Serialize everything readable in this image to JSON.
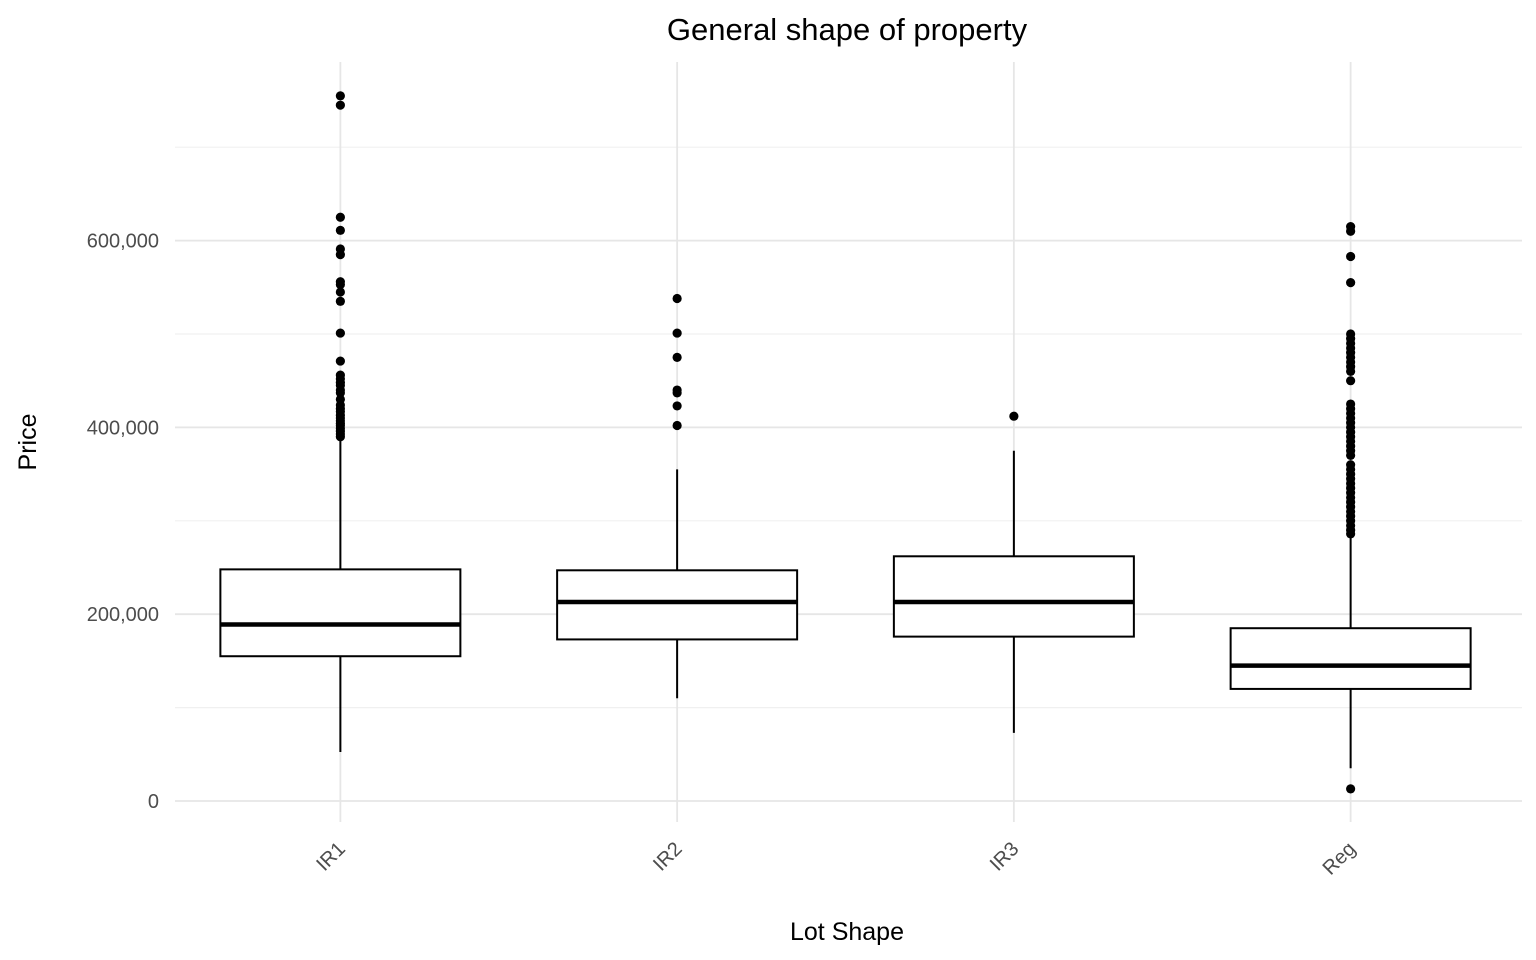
{
  "chart_data": {
    "type": "boxplot",
    "title": "General shape of property",
    "xlabel": "Lot Shape",
    "ylabel": "Price",
    "ylim": [
      -45000,
      790000
    ],
    "y_major_ticks": [
      0,
      200000,
      400000,
      600000
    ],
    "y_tick_labels": [
      "0",
      "200,000",
      "400,000",
      "600,000"
    ],
    "y_minor_ticks": [
      100000,
      300000,
      500000,
      700000
    ],
    "grid": true,
    "x_tick_label_rotation": "45",
    "categories": [
      "IR1",
      "IR2",
      "IR3",
      "Reg"
    ],
    "boxes": [
      {
        "category": "IR1",
        "whisker_low": 52500,
        "q1": 155000,
        "median": 189000,
        "q3": 248000,
        "whisker_high": 387000,
        "outliers": [
          390000,
          393000,
          396000,
          399000,
          402000,
          404000,
          407000,
          410000,
          413000,
          417000,
          420000,
          424000,
          430000,
          437000,
          440000,
          445000,
          448000,
          452000,
          456000,
          471000,
          501000,
          535000,
          545000,
          553000,
          556000,
          585000,
          591000,
          611000,
          625000,
          745000,
          755000
        ]
      },
      {
        "category": "IR2",
        "whisker_low": 110000,
        "q1": 173000,
        "median": 213000,
        "q3": 247000,
        "whisker_high": 355000,
        "outliers": [
          402000,
          423000,
          437000,
          440000,
          475000,
          501000,
          538000
        ]
      },
      {
        "category": "IR3",
        "whisker_low": 73000,
        "q1": 176000,
        "median": 213000,
        "q3": 262000,
        "whisker_high": 375000,
        "outliers": [
          412000
        ]
      },
      {
        "category": "Reg",
        "whisker_low": 35000,
        "q1": 120000,
        "median": 145000,
        "q3": 185000,
        "whisker_high": 284000,
        "outliers": [
          13000,
          286000,
          290000,
          295000,
          300000,
          305000,
          310000,
          315000,
          320000,
          325000,
          330000,
          335000,
          340000,
          345000,
          350000,
          355000,
          360000,
          370000,
          375000,
          380000,
          385000,
          390000,
          395000,
          400000,
          405000,
          410000,
          415000,
          420000,
          425000,
          450000,
          460000,
          465000,
          470000,
          475000,
          480000,
          485000,
          490000,
          495000,
          500000,
          555000,
          583000,
          610000,
          615000
        ]
      }
    ]
  }
}
